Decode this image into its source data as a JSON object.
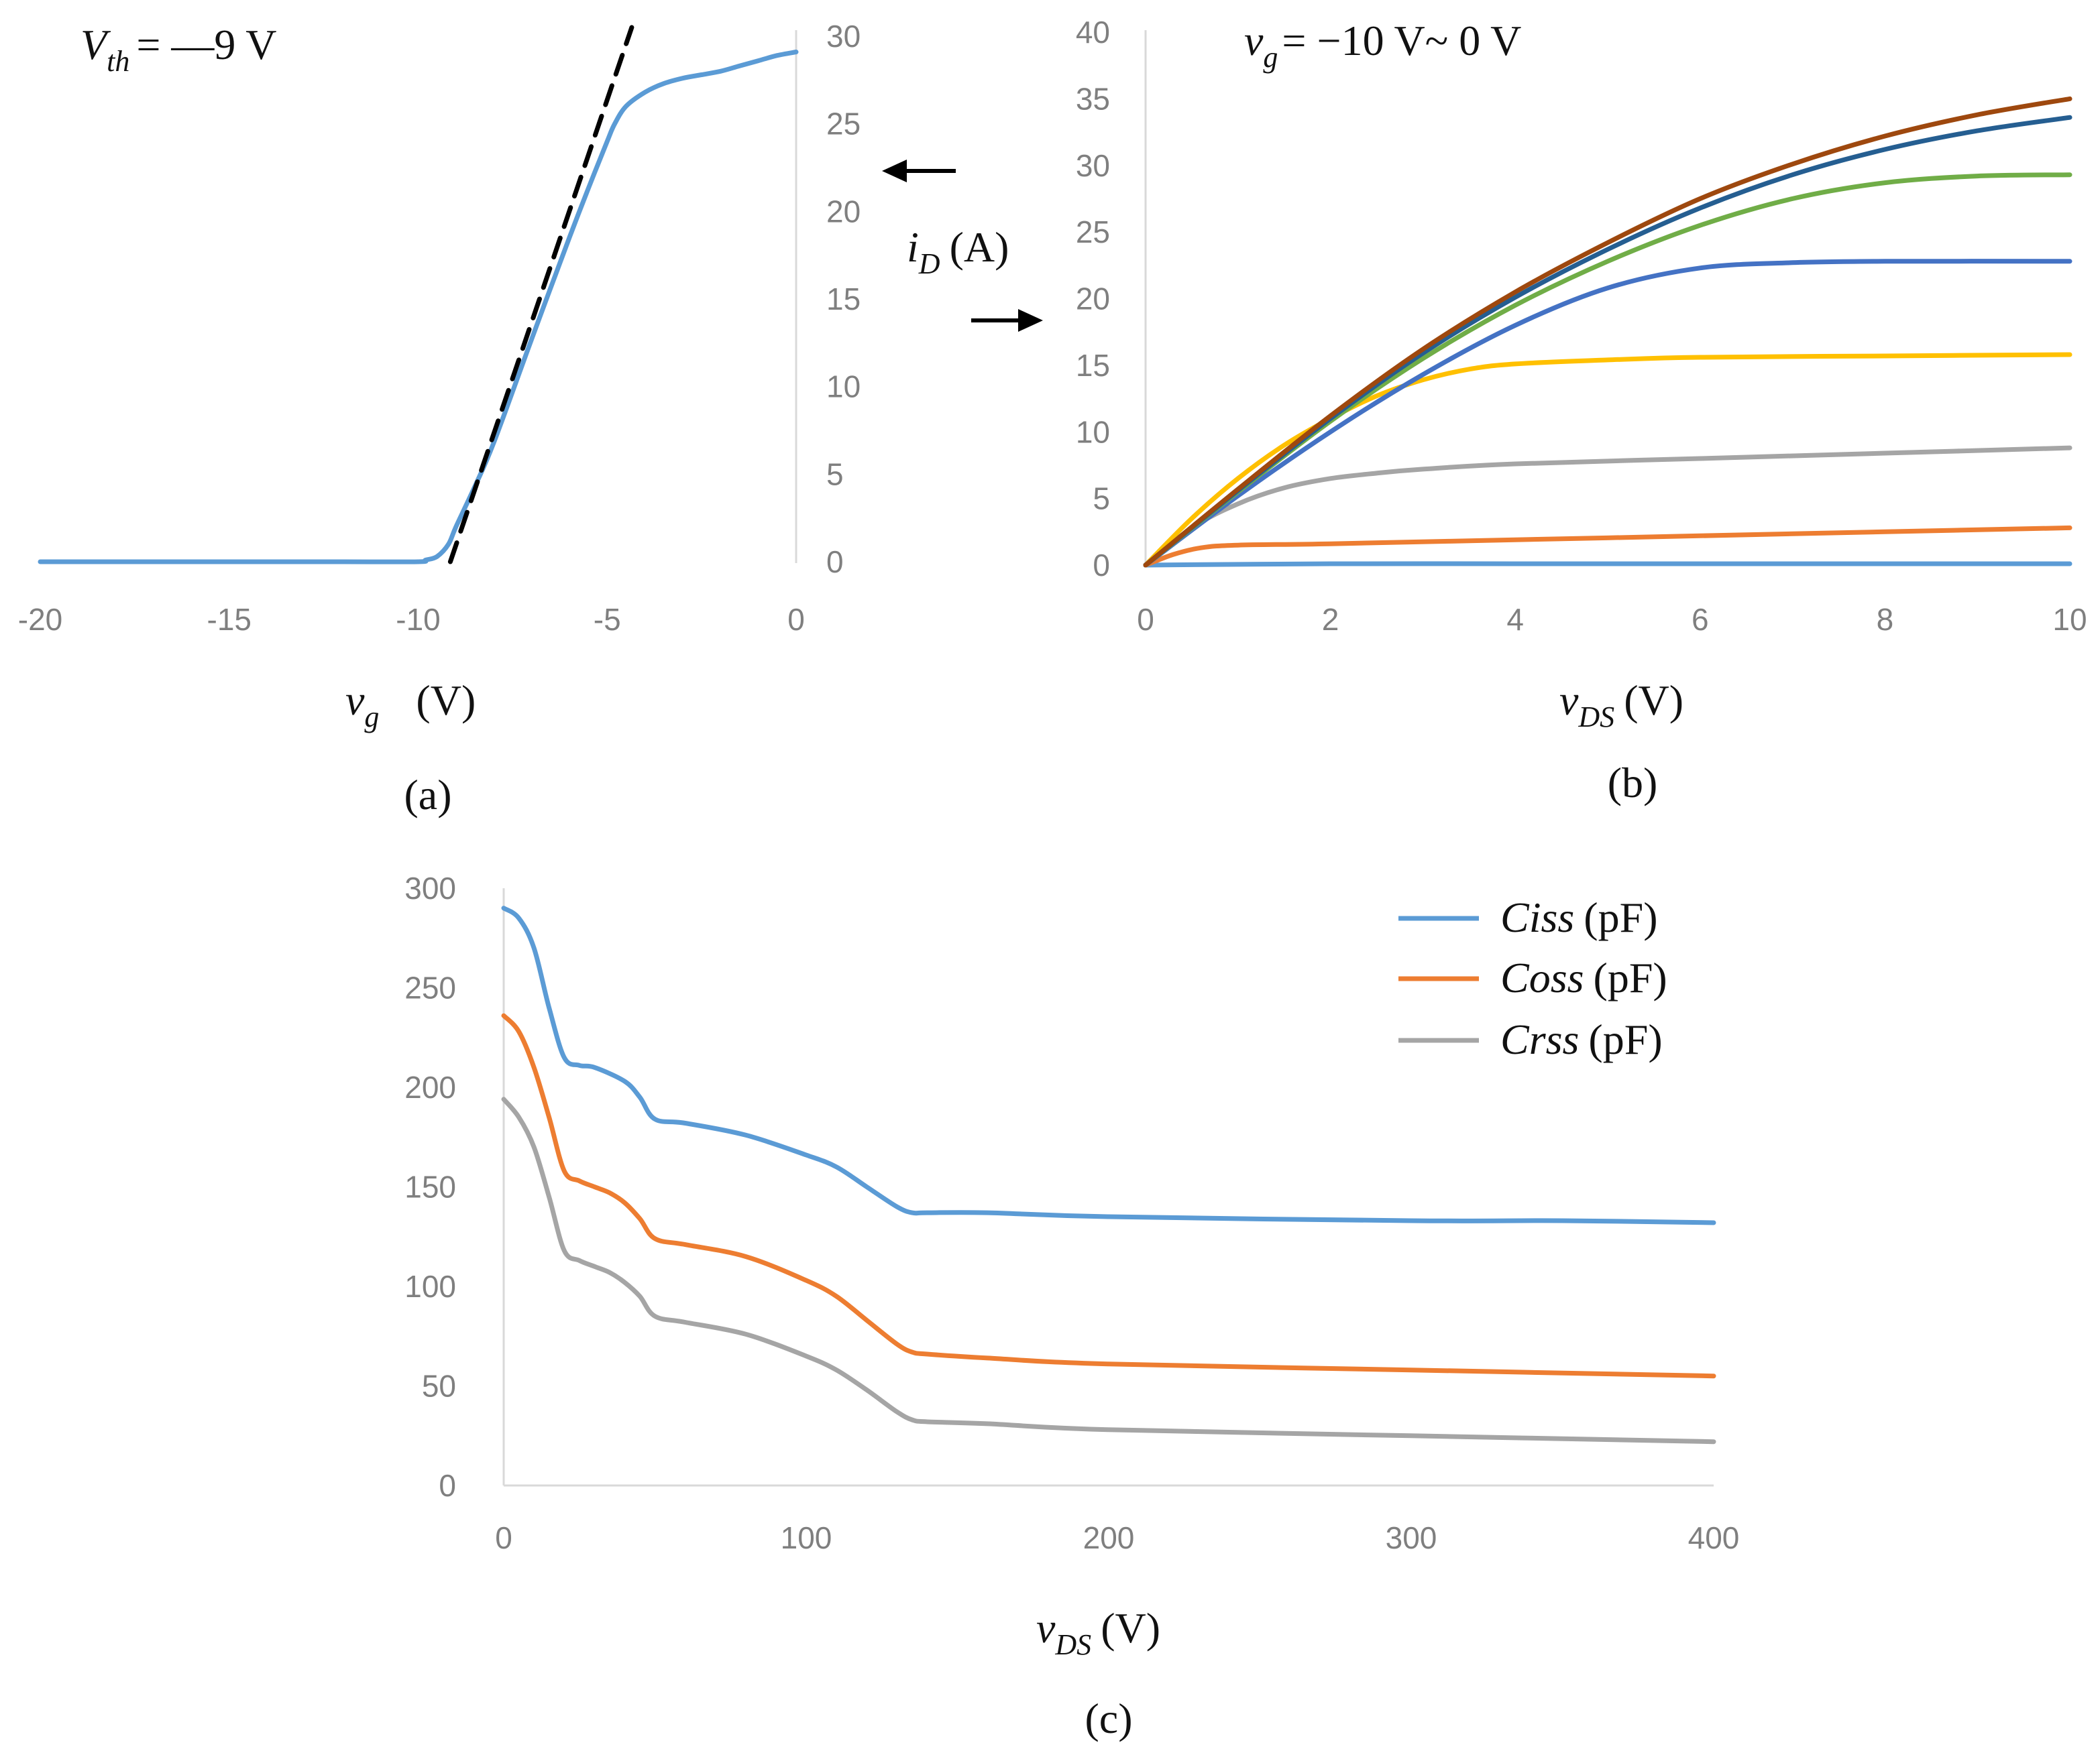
{
  "chart_data": [
    {
      "id": "a",
      "type": "line",
      "panel_label": "(a)",
      "annotation": {
        "symbol": "V",
        "subscript": "th",
        "text": "= —9 V"
      },
      "xlabel": {
        "symbol": "v",
        "subscript": "g",
        "unit": "(V)"
      },
      "ylabel": {
        "symbol": "i",
        "subscript": "D",
        "unit": "(A)"
      },
      "xlim": [
        -20,
        0
      ],
      "ylim": [
        0,
        30
      ],
      "xticks": [
        -20,
        -15,
        -10,
        -5,
        0
      ],
      "xtick_labels": [
        "-20",
        "-15",
        "-10",
        "-5",
        "0"
      ],
      "yticks": [
        0,
        5,
        10,
        15,
        20,
        25,
        30
      ],
      "ytick_labels": [
        "0",
        "5",
        "10",
        "15",
        "20",
        "25",
        "30"
      ],
      "y_axis_side": "right",
      "series": [
        {
          "name": "i_D vs v_g",
          "color": "#5b9bd5",
          "x": [
            -20,
            -15,
            -12,
            -10,
            -9.8,
            -9.5,
            -9.2,
            -9.0,
            -8.5,
            -8,
            -7,
            -6,
            -5.5,
            -5.0,
            -4.8,
            -4.5,
            -4,
            -3.5,
            -3,
            -2.5,
            -2,
            -1.5,
            -1,
            -0.5,
            0
          ],
          "y": [
            0,
            0,
            0,
            0,
            0.1,
            0.3,
            1.0,
            2.0,
            4.3,
            6.8,
            12.7,
            18.5,
            21.3,
            24.0,
            25.0,
            26.0,
            26.8,
            27.3,
            27.6,
            27.8,
            28.0,
            28.3,
            28.6,
            28.9,
            29.1
          ]
        },
        {
          "name": "threshold tangent",
          "color": "#000000",
          "dashed": true,
          "x": [
            -9.15,
            -4.35
          ],
          "y": [
            0,
            30.5
          ]
        }
      ]
    },
    {
      "id": "b",
      "type": "line",
      "panel_label": "(b)",
      "annotation": {
        "symbol": "v",
        "subscript": "g",
        "text": "= −10 V~ 0 V"
      },
      "xlabel": {
        "symbol": "v",
        "subscript": "DS",
        "unit": "(V)"
      },
      "xlim": [
        0,
        10
      ],
      "ylim": [
        0,
        40
      ],
      "xticks": [
        0,
        2,
        4,
        6,
        8,
        10
      ],
      "xtick_labels": [
        "0",
        "2",
        "4",
        "6",
        "8",
        "10"
      ],
      "yticks": [
        0,
        5,
        10,
        15,
        20,
        25,
        30,
        35,
        40
      ],
      "ytick_labels": [
        "0",
        "5",
        "10",
        "15",
        "20",
        "25",
        "30",
        "35",
        "40"
      ],
      "series": [
        {
          "name": "v_g=-10",
          "color": "#5b9bd5",
          "x": [
            0,
            2,
            4,
            6,
            8,
            10
          ],
          "y": [
            0,
            0.1,
            0.1,
            0.1,
            0.1,
            0.1
          ]
        },
        {
          "name": "v_g=-8",
          "color": "#ed7d31",
          "x": [
            0,
            0.3,
            0.6,
            1,
            2,
            4,
            6,
            8,
            10
          ],
          "y": [
            0,
            0.8,
            1.3,
            1.5,
            1.6,
            1.9,
            2.2,
            2.5,
            2.8
          ]
        },
        {
          "name": "v_g=-6",
          "color": "#a5a5a5",
          "x": [
            0,
            0.5,
            1,
            1.5,
            2,
            2.5,
            3,
            4,
            6,
            8,
            10
          ],
          "y": [
            0,
            2.8,
            4.6,
            5.8,
            6.5,
            6.9,
            7.2,
            7.6,
            8.0,
            8.4,
            8.8
          ]
        },
        {
          "name": "v_g=-4",
          "color": "#ffc000",
          "x": [
            0,
            0.5,
            1,
            1.5,
            2,
            2.5,
            3,
            3.5,
            4,
            5,
            6,
            8,
            10
          ],
          "y": [
            0,
            3.5,
            6.5,
            9.0,
            11.0,
            12.7,
            13.9,
            14.7,
            15.1,
            15.4,
            15.6,
            15.7,
            15.8
          ]
        },
        {
          "name": "v_g=-2",
          "color": "#4472c4",
          "x": [
            0,
            1,
            2,
            3,
            4,
            5,
            6,
            7,
            8,
            10
          ],
          "y": [
            0,
            5.2,
            10.0,
            14.3,
            18.0,
            20.8,
            22.3,
            22.7,
            22.8,
            22.8
          ]
        },
        {
          "name": "v_g=-1",
          "color": "#70ad47",
          "x": [
            0,
            1,
            2,
            3,
            4,
            5,
            6,
            7,
            8,
            9,
            10
          ],
          "y": [
            0,
            5.5,
            10.8,
            15.5,
            19.5,
            22.8,
            25.5,
            27.5,
            28.7,
            29.2,
            29.3
          ]
        },
        {
          "name": "v_g=-0.5",
          "color": "#255e91",
          "x": [
            0,
            1,
            2,
            3,
            4,
            5,
            6,
            7,
            8,
            9,
            10
          ],
          "y": [
            0,
            5.6,
            11.0,
            15.9,
            20.1,
            23.7,
            26.8,
            29.3,
            31.2,
            32.6,
            33.6
          ]
        },
        {
          "name": "v_g=0",
          "color": "#9e480e",
          "x": [
            0,
            1,
            2,
            3,
            4,
            5,
            6,
            7,
            8,
            9,
            10
          ],
          "y": [
            0,
            5.7,
            11.2,
            16.2,
            20.5,
            24.2,
            27.5,
            30.1,
            32.2,
            33.8,
            35.0
          ]
        }
      ]
    },
    {
      "id": "c",
      "type": "line",
      "panel_label": "(c)",
      "xlabel": {
        "symbol": "v",
        "subscript": "DS",
        "unit": "(V)"
      },
      "xlim": [
        0,
        400
      ],
      "ylim": [
        0,
        300
      ],
      "xticks": [
        0,
        100,
        200,
        300,
        400
      ],
      "xtick_labels": [
        "0",
        "100",
        "200",
        "300",
        "400"
      ],
      "yticks": [
        0,
        50,
        100,
        150,
        200,
        250,
        300
      ],
      "ytick_labels": [
        "0",
        "50",
        "100",
        "150",
        "200",
        "250",
        "300"
      ],
      "legend_position": "top-right",
      "series": [
        {
          "name": "Ciss",
          "unit": "(pF)",
          "color": "#5b9bd5",
          "x": [
            0,
            5,
            10,
            15,
            20,
            25,
            30,
            40,
            45,
            50,
            60,
            80,
            100,
            110,
            120,
            130,
            135,
            140,
            160,
            200,
            300,
            350,
            400
          ],
          "y": [
            290,
            285,
            270,
            240,
            215,
            211,
            210,
            203,
            195,
            184,
            182,
            176,
            166,
            160,
            150,
            140,
            137,
            137,
            137,
            135,
            133,
            133,
            132
          ]
        },
        {
          "name": "Coss",
          "unit": "(pF)",
          "color": "#ed7d31",
          "x": [
            0,
            5,
            10,
            15,
            20,
            25,
            30,
            35,
            40,
            45,
            50,
            60,
            80,
            100,
            110,
            120,
            130,
            135,
            140,
            160,
            200,
            300,
            400
          ],
          "y": [
            236,
            228,
            210,
            185,
            158,
            153,
            150,
            147,
            142,
            134,
            124,
            121,
            115,
            103,
            95,
            83,
            71,
            67,
            66,
            64,
            61,
            58,
            55
          ]
        },
        {
          "name": "Crss",
          "unit": "(pF)",
          "color": "#a5a5a5",
          "x": [
            0,
            5,
            10,
            15,
            20,
            25,
            30,
            35,
            40,
            45,
            50,
            60,
            80,
            100,
            110,
            120,
            130,
            135,
            140,
            160,
            200,
            300,
            400
          ],
          "y": [
            194,
            185,
            170,
            145,
            118,
            113,
            110,
            107,
            102,
            95,
            85,
            82,
            76,
            65,
            58,
            48,
            37,
            33,
            32,
            31,
            28,
            25,
            22
          ]
        }
      ]
    }
  ]
}
